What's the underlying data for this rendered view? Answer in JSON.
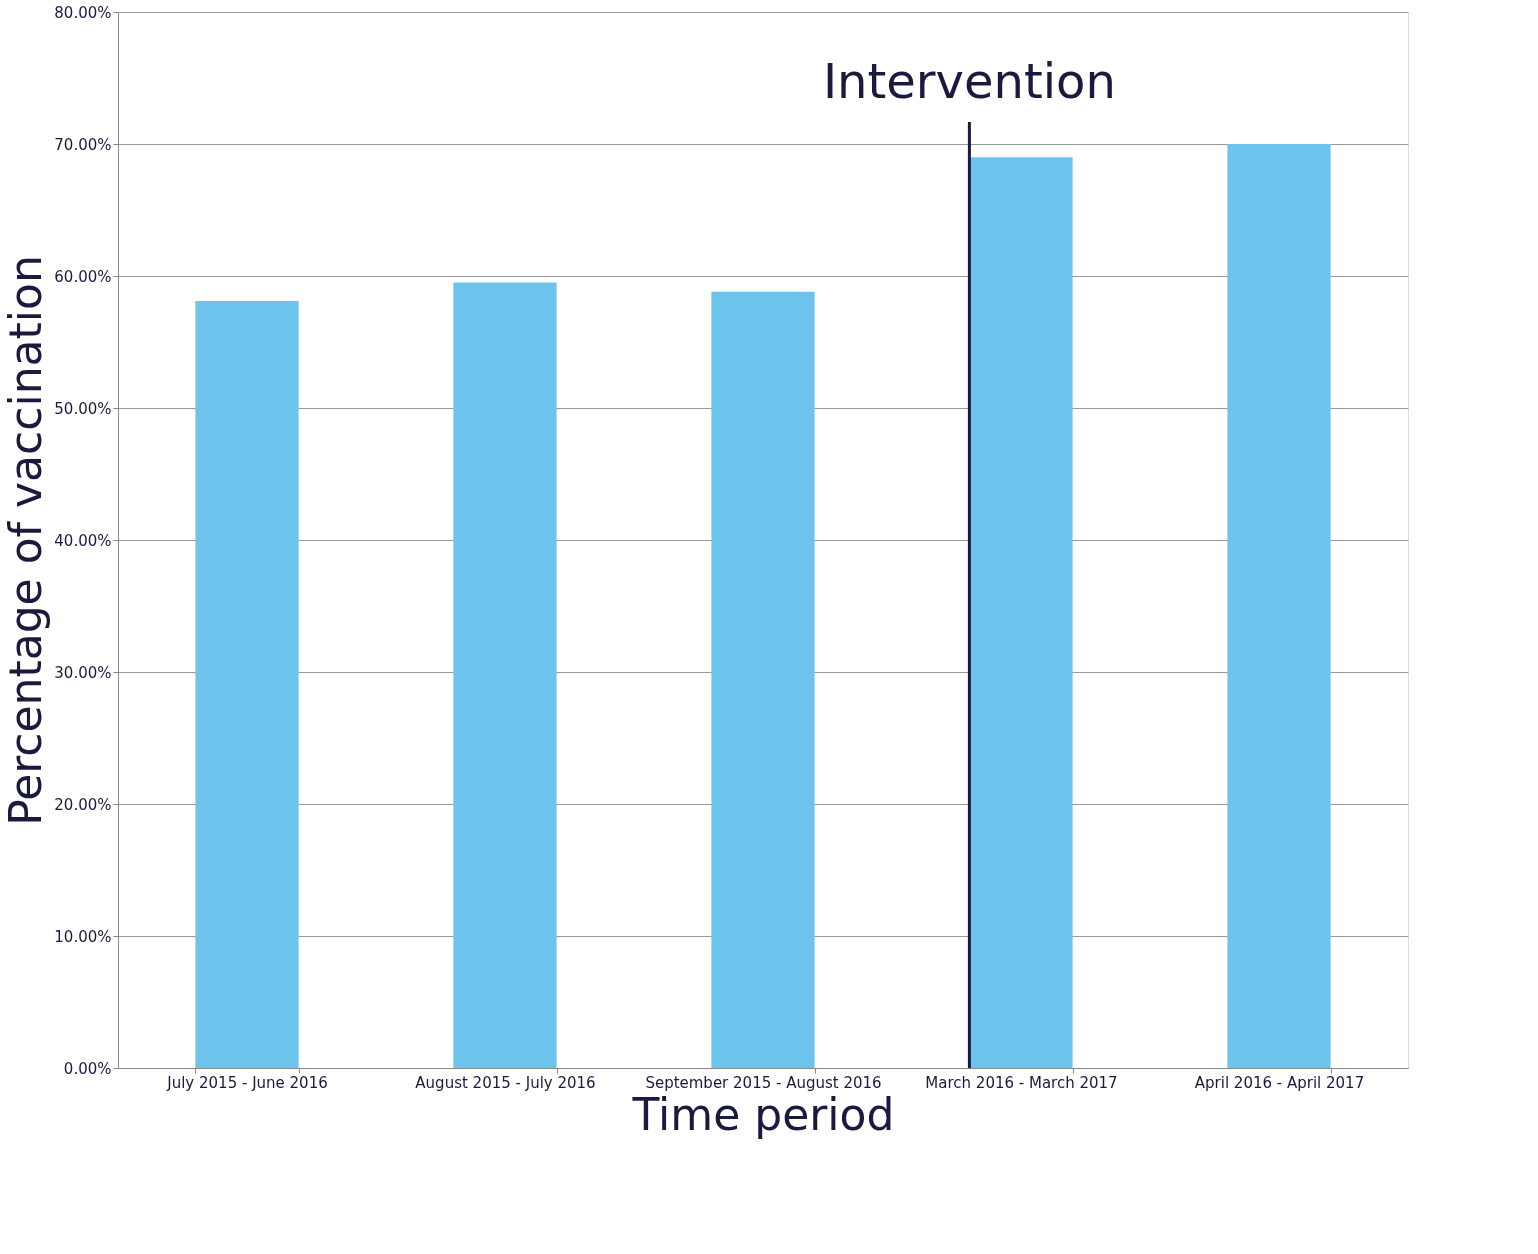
{
  "chart_data": {
    "type": "bar",
    "xlabel": "Time period",
    "ylabel": "Percentage of vaccination",
    "categories": [
      "July 2015 - June 2016",
      "August 2015 - July 2016",
      "September 2015 - August 2016",
      "March 2016 - March 2017",
      "April 2016 - April 2017"
    ],
    "values": [
      58.1,
      59.5,
      58.8,
      69.0,
      70.0
    ],
    "color": "#6cc3ec",
    "ylim": [
      0,
      80
    ],
    "yticks": [
      {
        "value": 0,
        "label": "0.00%"
      },
      {
        "value": 10,
        "label": "10.00%"
      },
      {
        "value": 20,
        "label": "20.00%"
      },
      {
        "value": 30,
        "label": "30.00%"
      },
      {
        "value": 40,
        "label": "40.00%"
      },
      {
        "value": 50,
        "label": "50.00%"
      },
      {
        "value": 60,
        "label": "60.00%"
      },
      {
        "value": 70,
        "label": "70.00%"
      },
      {
        "value": 80,
        "label": "80.00%"
      }
    ],
    "grid": "y",
    "ref_lines": [
      {
        "axis": "x",
        "value": "March 2016 - March 2017",
        "label": "Intervention",
        "color": "#1a1a3e"
      }
    ]
  }
}
